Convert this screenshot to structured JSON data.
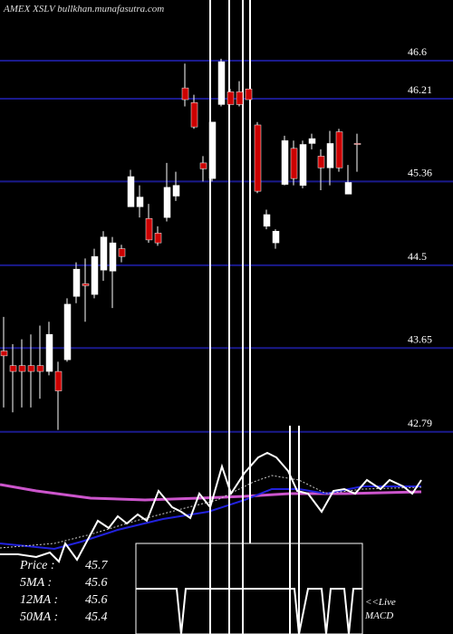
{
  "chart_data": {
    "type": "candlestick",
    "title": "AMEX XSLV bullkhan.munafasutra.com",
    "ylim": [
      42.76,
      47.13
    ],
    "yticks": [
      46.6,
      46.21,
      45.36,
      44.5,
      43.65,
      42.79
    ],
    "grid": true,
    "grid_color": "#1a1a8c",
    "up_color": "#ffffff",
    "down_color": "#cc0000",
    "open": [
      43.62,
      43.47,
      43.47,
      43.47,
      43.47,
      43.41,
      43.41,
      43.53,
      44.18,
      44.31,
      44.2,
      44.45,
      44.44,
      44.67,
      45.1,
      45.1,
      44.98,
      44.83,
      44.99,
      45.21,
      46.32,
      46.17,
      45.55,
      45.39,
      46.15,
      46.28,
      46.28,
      46.31,
      45.94,
      44.9,
      44.73,
      45.33,
      45.7,
      45.32,
      45.75,
      45.62,
      45.5,
      45.87,
      45.23,
      45.75
    ],
    "high": [
      43.97,
      43.69,
      43.74,
      43.79,
      43.88,
      43.92,
      43.51,
      44.16,
      44.53,
      44.57,
      44.67,
      44.85,
      44.79,
      44.71,
      45.48,
      45.32,
      45.13,
      44.9,
      45.55,
      45.46,
      46.57,
      46.25,
      45.62,
      45.97,
      46.62,
      46.31,
      46.39,
      46.31,
      45.97,
      45.07,
      44.87,
      45.83,
      45.78,
      45.78,
      45.85,
      45.69,
      45.88,
      45.9,
      45.53,
      45.85
    ],
    "low": [
      43.04,
      42.99,
      43.04,
      43.04,
      43.13,
      43.37,
      42.81,
      43.51,
      44.11,
      43.92,
      44.16,
      44.34,
      44.06,
      44.53,
      45.1,
      44.99,
      44.73,
      44.7,
      44.95,
      45.16,
      46.13,
      45.9,
      45.36,
      45.36,
      46.13,
      46.15,
      46.13,
      46.2,
      45.24,
      44.87,
      44.67,
      45.32,
      45.32,
      45.29,
      45.69,
      45.27,
      45.32,
      45.46,
      45.23,
      45.46
    ],
    "close": [
      43.57,
      43.41,
      43.41,
      43.41,
      43.41,
      43.79,
      43.21,
      44.1,
      44.46,
      44.29,
      44.59,
      44.79,
      44.73,
      44.59,
      45.41,
      45.2,
      44.76,
      44.73,
      45.3,
      45.32,
      46.2,
      45.92,
      45.49,
      45.97,
      46.59,
      46.15,
      46.15,
      46.2,
      45.26,
      45.02,
      44.85,
      45.78,
      45.39,
      45.74,
      45.8,
      45.5,
      45.75,
      45.5,
      45.35,
      45.74
    ]
  },
  "legend": {
    "rows": [
      {
        "label": "Price   :",
        "value": 45.7
      },
      {
        "label": "5MA :",
        "value": 45.6
      },
      {
        "label": "12MA :",
        "value": 45.6
      },
      {
        "label": "50MA :",
        "value": 45.4
      }
    ]
  },
  "macd_label": [
    "<<Live",
    "MACD"
  ]
}
